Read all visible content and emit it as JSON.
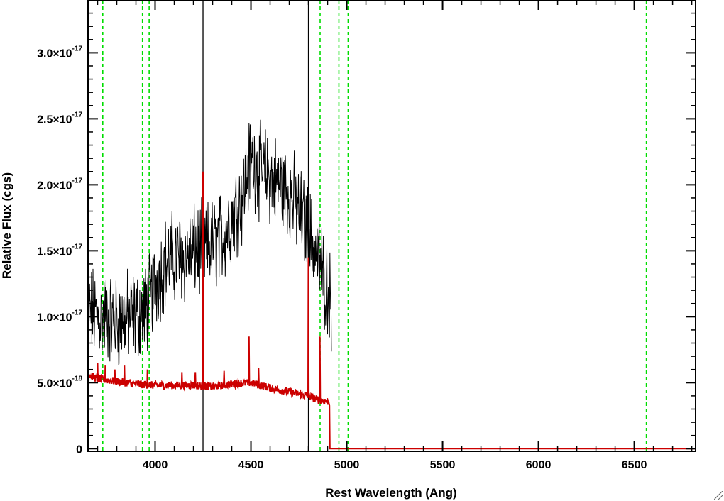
{
  "chart_data": {
    "type": "line",
    "title": "",
    "xlabel": "Rest Wavelength (Ang)",
    "ylabel": "Relative Flux (cgs)",
    "xlim": [
      3650,
      6820
    ],
    "ylim": [
      -2e-19,
      3.4e-17
    ],
    "x_ticks": [
      {
        "value": 4000,
        "label": "4000"
      },
      {
        "value": 4500,
        "label": "4500"
      },
      {
        "value": 5000,
        "label": "5000"
      },
      {
        "value": 5500,
        "label": "5500"
      },
      {
        "value": 6000,
        "label": "6000"
      },
      {
        "value": 6500,
        "label": "6500"
      }
    ],
    "y_ticks": [
      {
        "value": 0,
        "mant": "0",
        "exp": ""
      },
      {
        "value": 5e-18,
        "mant": "5.0×10",
        "exp": "-18"
      },
      {
        "value": 1e-17,
        "mant": "1.0×10",
        "exp": "-17"
      },
      {
        "value": 1.5e-17,
        "mant": "1.5×10",
        "exp": "-17"
      },
      {
        "value": 2e-17,
        "mant": "2.0×10",
        "exp": "-17"
      },
      {
        "value": 2.5e-17,
        "mant": "2.5×10",
        "exp": "-17"
      },
      {
        "value": 3e-17,
        "mant": "3.0×10",
        "exp": "-17"
      }
    ],
    "vertical_lines_dashed": [
      3727,
      3934,
      3969,
      4861,
      4959,
      5007,
      6563
    ],
    "vertical_lines_solid": [
      4250,
      4800
    ],
    "series": [
      {
        "color": "#000000",
        "x": [
          3650,
          3700,
          3750,
          3800,
          3850,
          3900,
          3950,
          4000,
          4050,
          4100,
          4150,
          4200,
          4250,
          4300,
          4350,
          4400,
          4450,
          4500,
          4550,
          4600,
          4650,
          4700,
          4750,
          4800,
          4850,
          4900,
          4920
        ],
        "y": [
          1.05e-17,
          1e-17,
          1e-17,
          9.5e-18,
          1e-17,
          1e-17,
          1.05e-17,
          1.25e-17,
          1.4e-17,
          1.45e-17,
          1.45e-17,
          1.5e-17,
          1.5e-17,
          1.55e-17,
          1.6e-17,
          1.75e-17,
          1.9e-17,
          2.2e-17,
          2.1e-17,
          2.05e-17,
          2e-17,
          1.95e-17,
          1.8e-17,
          1.65e-17,
          1.45e-17,
          1.2e-17,
          1.1e-17
        ],
        "noise_amplitude": 2.8e-18
      },
      {
        "color": "#cc0000",
        "x": [
          3650,
          3700,
          3800,
          3900,
          4000,
          4100,
          4200,
          4300,
          4400,
          4500,
          4600,
          4700,
          4800,
          4850,
          4900,
          4910,
          4912,
          6820
        ],
        "y": [
          5.6e-18,
          5.3e-18,
          5.1e-18,
          4.9e-18,
          4.8e-18,
          4.8e-18,
          4.8e-18,
          4.7e-18,
          4.9e-18,
          5e-18,
          4.6e-18,
          4.3e-18,
          4e-18,
          3.7e-18,
          3.6e-18,
          3.5e-18,
          0,
          0
        ],
        "emission_spikes": [
          {
            "x": 3700,
            "peak": 6.5e-18
          },
          {
            "x": 3740,
            "peak": 6.3e-18
          },
          {
            "x": 3790,
            "peak": 6e-18
          },
          {
            "x": 3840,
            "peak": 6.3e-18
          },
          {
            "x": 3960,
            "peak": 6e-18
          },
          {
            "x": 4140,
            "peak": 5.8e-18
          },
          {
            "x": 4210,
            "peak": 5.8e-18
          },
          {
            "x": 4250,
            "peak": 2.1e-17
          },
          {
            "x": 4360,
            "peak": 5.9e-18
          },
          {
            "x": 4490,
            "peak": 8.5e-18
          },
          {
            "x": 4540,
            "peak": 6.1e-18
          },
          {
            "x": 4800,
            "peak": 1.45e-17
          },
          {
            "x": 4860,
            "peak": 8.5e-18
          }
        ]
      }
    ],
    "colors": {
      "dashed_lines": "#00dd00",
      "black_spectrum": "#000000",
      "red_spectrum": "#cc0000"
    }
  }
}
